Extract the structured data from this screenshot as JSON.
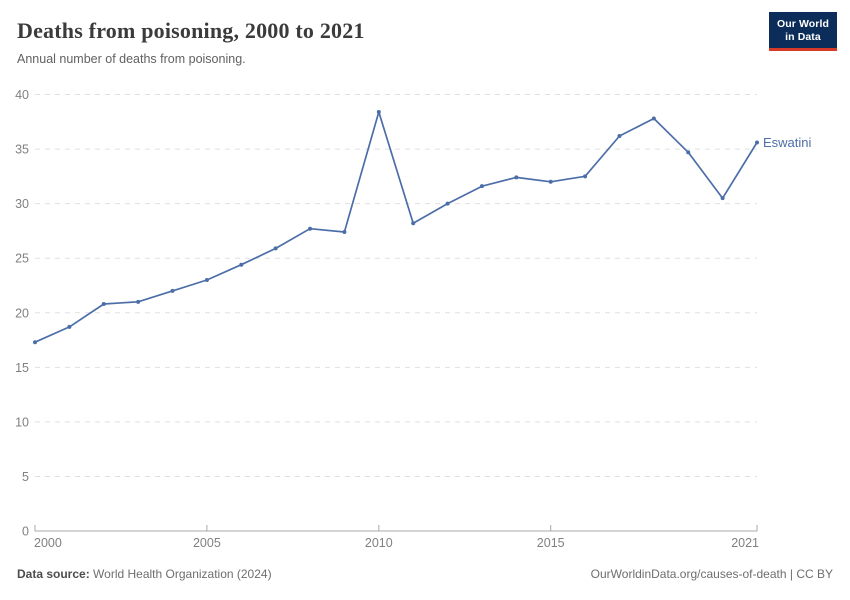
{
  "header": {
    "title": "Deaths from poisoning, 2000 to 2021",
    "subtitle": "Annual number of deaths from poisoning."
  },
  "logo": {
    "line1": "Our World",
    "line2": "in Data",
    "bg_color": "#0c2c5a",
    "accent_color": "#d73a27"
  },
  "chart_data": {
    "type": "line",
    "title": "Deaths from poisoning, 2000 to 2021",
    "subtitle": "Annual number of deaths from poisoning.",
    "x": [
      2000,
      2001,
      2002,
      2003,
      2004,
      2005,
      2006,
      2007,
      2008,
      2009,
      2010,
      2011,
      2012,
      2013,
      2014,
      2015,
      2016,
      2017,
      2018,
      2019,
      2020,
      2021
    ],
    "series": [
      {
        "name": "Eswatini",
        "color": "#4c6ea8",
        "values": [
          17.3,
          18.7,
          20.8,
          21.0,
          22.0,
          23.0,
          24.4,
          25.9,
          27.7,
          27.4,
          38.4,
          28.2,
          30.0,
          31.6,
          32.4,
          32.0,
          32.5,
          36.2,
          37.8,
          34.7,
          30.5,
          35.6
        ]
      }
    ],
    "xlim": [
      2000,
      2021
    ],
    "ylim": [
      0,
      40
    ],
    "xticks": [
      2000,
      2005,
      2010,
      2015,
      2021
    ],
    "yticks": [
      0,
      5,
      10,
      15,
      20,
      25,
      30,
      35,
      40
    ],
    "grid": "horizontal-dashed",
    "legend": "end-of-line-label",
    "xlabel": "",
    "ylabel": ""
  },
  "footer": {
    "source_label": "Data source:",
    "source_value": " World Health Organization (2024)",
    "link": "OurWorldinData.org/causes-of-death | CC BY"
  },
  "colors": {
    "grid": "#e0e0e0",
    "axis": "#a8a8a8",
    "tick_label": "#808080",
    "title": "#3b3b3b",
    "subtitle": "#616161"
  }
}
